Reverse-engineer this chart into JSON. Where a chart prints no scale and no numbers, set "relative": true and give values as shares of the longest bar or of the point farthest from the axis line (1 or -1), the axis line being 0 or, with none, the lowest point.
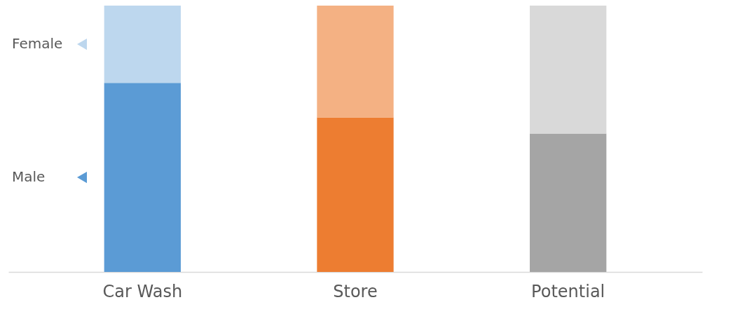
{
  "chart_data": {
    "type": "bar",
    "stacked": true,
    "relative": true,
    "legend": "left",
    "grid": false,
    "categories": [
      "Car Wash",
      "Store",
      "Potential"
    ],
    "series": [
      {
        "name": "Male",
        "colors": [
          "#5b9bd5",
          "#ed7d31",
          "#a5a5a5"
        ],
        "values": [
          0.71,
          0.58,
          0.52
        ]
      },
      {
        "name": "Female",
        "colors": [
          "#bdd7ee",
          "#f4b183",
          "#d9d9d9"
        ],
        "values": [
          0.29,
          0.42,
          0.48
        ]
      }
    ]
  }
}
